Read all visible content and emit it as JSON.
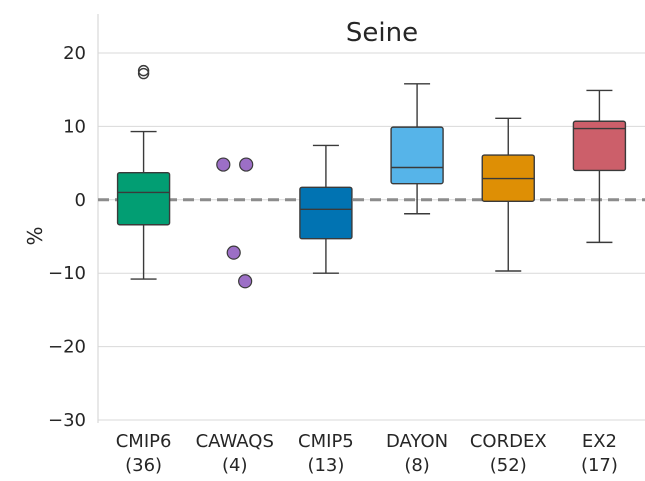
{
  "chart_data": {
    "type": "box",
    "title": "Seine",
    "ylabel": "%",
    "xlabel": "",
    "ylim": [
      -30,
      20
    ],
    "yticks": [
      20,
      10,
      0,
      -10,
      -20,
      -30
    ],
    "ytick_labels": [
      "20",
      "10",
      "0",
      "−10",
      "−20",
      "−30"
    ],
    "grid": "horizontal",
    "reference_line": 0,
    "categories": [
      {
        "name": "CMIP6",
        "count": "(36)",
        "color": "#029e73",
        "kind": "box",
        "whisker_low": -10.8,
        "q1": -3.4,
        "median": 1.0,
        "q3": 3.7,
        "whisker_high": 9.3,
        "outliers": [
          17.2,
          17.6
        ]
      },
      {
        "name": "CAWAQS",
        "count": "(4)",
        "color": "#9c6fc6",
        "kind": "points",
        "points": [
          {
            "y": 4.8,
            "offset": -0.22
          },
          {
            "y": 4.8,
            "offset": 0.22
          },
          {
            "y": -7.2,
            "offset": -0.02
          },
          {
            "y": -11.1,
            "offset": 0.2
          }
        ]
      },
      {
        "name": "CMIP5",
        "count": "(13)",
        "color": "#0173b2",
        "kind": "box",
        "whisker_low": -10.0,
        "q1": -5.3,
        "median": -1.3,
        "q3": 1.7,
        "whisker_high": 7.4,
        "outliers": []
      },
      {
        "name": "DAYON",
        "count": "(8)",
        "color": "#56b4e9",
        "kind": "box",
        "whisker_low": -1.9,
        "q1": 2.2,
        "median": 4.4,
        "q3": 9.9,
        "whisker_high": 15.8,
        "outliers": []
      },
      {
        "name": "CORDEX",
        "count": "(52)",
        "color": "#de8f05",
        "kind": "box",
        "whisker_low": -9.7,
        "q1": -0.2,
        "median": 2.9,
        "q3": 6.1,
        "whisker_high": 11.1,
        "outliers": []
      },
      {
        "name": "EX2",
        "count": "(17)",
        "color": "#cc5f6a",
        "kind": "box",
        "whisker_low": -5.8,
        "q1": 4.0,
        "median": 9.7,
        "q3": 10.7,
        "whisker_high": 14.9,
        "outliers": []
      }
    ]
  }
}
